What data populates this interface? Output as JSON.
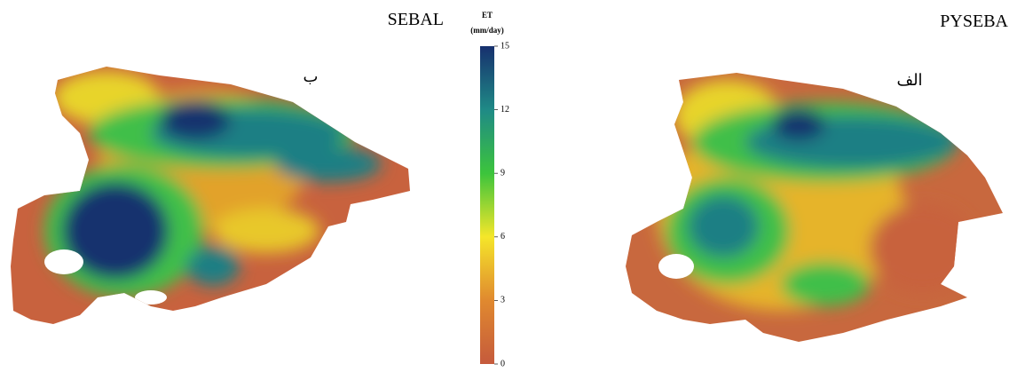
{
  "maps": [
    {
      "title": "SEBAL",
      "label": "ب"
    },
    {
      "title": "PYSEBA",
      "label": "الف"
    }
  ],
  "colorbar": {
    "title": "ET",
    "unit": "(mm/day)",
    "lim": [
      0,
      15
    ],
    "ticks": [
      0,
      3,
      6,
      9,
      12,
      15
    ]
  }
}
